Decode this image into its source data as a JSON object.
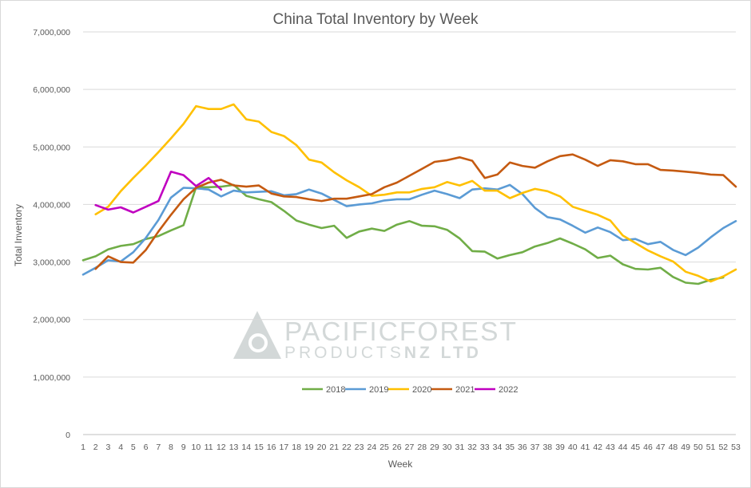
{
  "chart_data": {
    "type": "line",
    "title": "China Total Inventory by Week",
    "xlabel": "Week",
    "ylabel": "Total Inventory",
    "ylim": [
      0,
      7000000
    ],
    "yticks": [
      0,
      1000000,
      2000000,
      3000000,
      4000000,
      5000000,
      6000000,
      7000000
    ],
    "ytick_labels": [
      "0",
      "1,000,000",
      "2,000,000",
      "3,000,000",
      "4,000,000",
      "5,000,000",
      "6,000,000",
      "7,000,000"
    ],
    "x": [
      1,
      2,
      3,
      4,
      5,
      6,
      7,
      8,
      9,
      10,
      11,
      12,
      13,
      14,
      15,
      16,
      17,
      18,
      19,
      20,
      21,
      22,
      23,
      24,
      25,
      26,
      27,
      28,
      29,
      30,
      31,
      32,
      33,
      34,
      35,
      36,
      37,
      38,
      39,
      40,
      41,
      42,
      43,
      44,
      45,
      46,
      47,
      48,
      49,
      50,
      51,
      52,
      53
    ],
    "grid": "horizontal",
    "legend_position": "bottom-inside",
    "series": [
      {
        "name": "2018",
        "color": "#70ad47",
        "values": [
          3030000,
          3100000,
          3220000,
          3280000,
          3310000,
          3400000,
          3450000,
          3550000,
          3640000,
          4300000,
          4300000,
          4310000,
          4340000,
          4150000,
          4090000,
          4040000,
          3890000,
          3720000,
          3650000,
          3590000,
          3630000,
          3420000,
          3530000,
          3580000,
          3540000,
          3650000,
          3710000,
          3630000,
          3620000,
          3560000,
          3410000,
          3190000,
          3180000,
          3060000,
          3120000,
          3170000,
          3270000,
          3330000,
          3410000,
          3320000,
          3220000,
          3070000,
          3110000,
          2960000,
          2880000,
          2870000,
          2900000,
          2740000,
          2640000,
          2620000,
          2690000,
          2730000,
          null
        ]
      },
      {
        "name": "2019",
        "color": "#5b9bd5",
        "values": [
          2780000,
          2900000,
          3030000,
          3010000,
          3170000,
          3420000,
          3730000,
          4120000,
          4290000,
          4280000,
          4260000,
          4140000,
          4240000,
          4210000,
          4220000,
          4230000,
          4160000,
          4180000,
          4260000,
          4190000,
          4080000,
          3970000,
          4000000,
          4020000,
          4070000,
          4090000,
          4090000,
          4170000,
          4240000,
          4180000,
          4110000,
          4260000,
          4280000,
          4260000,
          4340000,
          4180000,
          3940000,
          3780000,
          3740000,
          3630000,
          3510000,
          3600000,
          3520000,
          3380000,
          3400000,
          3310000,
          3350000,
          3210000,
          3120000,
          3250000,
          3430000,
          3590000,
          3710000
        ]
      },
      {
        "name": "2020",
        "color": "#ffc000",
        "values": [
          null,
          3830000,
          3960000,
          4230000,
          4460000,
          4680000,
          4910000,
          5150000,
          5400000,
          5710000,
          5660000,
          5660000,
          5740000,
          5480000,
          5440000,
          5260000,
          5190000,
          5030000,
          4780000,
          4730000,
          4560000,
          4420000,
          4300000,
          4150000,
          4170000,
          4210000,
          4210000,
          4270000,
          4300000,
          4390000,
          4330000,
          4410000,
          4240000,
          4240000,
          4110000,
          4200000,
          4270000,
          4230000,
          4140000,
          3960000,
          3890000,
          3820000,
          3720000,
          3460000,
          3330000,
          3200000,
          3100000,
          3010000,
          2830000,
          2760000,
          2660000,
          2750000,
          2870000
        ]
      },
      {
        "name": "2021",
        "color": "#c55a11",
        "values": [
          null,
          2880000,
          3100000,
          3000000,
          2990000,
          3210000,
          3530000,
          3820000,
          4090000,
          4290000,
          4380000,
          4430000,
          4330000,
          4310000,
          4330000,
          4190000,
          4140000,
          4130000,
          4090000,
          4060000,
          4100000,
          4100000,
          4140000,
          4180000,
          4300000,
          4380000,
          4500000,
          4620000,
          4740000,
          4770000,
          4820000,
          4760000,
          4460000,
          4520000,
          4730000,
          4670000,
          4640000,
          4750000,
          4840000,
          4870000,
          4780000,
          4670000,
          4770000,
          4750000,
          4700000,
          4700000,
          4600000,
          4590000,
          4570000,
          4550000,
          4520000,
          4510000,
          4310000
        ]
      },
      {
        "name": "2022",
        "color": "#c000c0",
        "values": [
          null,
          3990000,
          3910000,
          3950000,
          3860000,
          3960000,
          4060000,
          4570000,
          4510000,
          4320000,
          4460000,
          4260000,
          null,
          null,
          null,
          null,
          null,
          null,
          null,
          null,
          null,
          null,
          null,
          null,
          null,
          null,
          null,
          null,
          null,
          null,
          null,
          null,
          null,
          null,
          null,
          null,
          null,
          null,
          null,
          null,
          null,
          null,
          null,
          null,
          null,
          null,
          null,
          null,
          null,
          null,
          null,
          null,
          null
        ]
      }
    ]
  },
  "watermark": {
    "line1": "PACIFICFOREST",
    "line2": "PRODUCTS",
    "line2_bold": "NZ LTD"
  }
}
